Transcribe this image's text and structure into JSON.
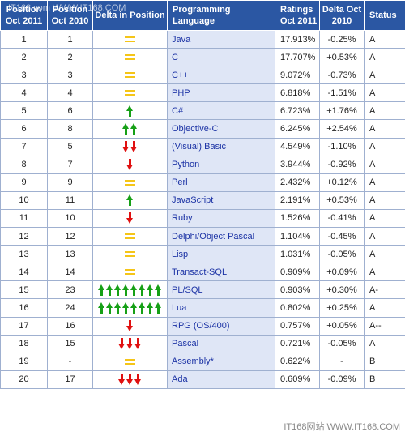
{
  "watermark_top": "IT168.com  WWW.IT168.COM",
  "watermark_bottom": "IT168网站 WWW.IT168.COM",
  "headers": {
    "position_now": "Position Oct 2011",
    "position_prev": "Position Oct 2010",
    "delta": "Delta in Position",
    "language": "Programming Language",
    "ratings": "Ratings Oct 2011",
    "delta_ratings": "Delta Oct 2010",
    "status": "Status"
  },
  "rows": [
    {
      "pos": "1",
      "prev": "1",
      "trend": "equal",
      "count": 1,
      "lang": "Java",
      "rating": "17.913%",
      "change": "-0.25%",
      "status": "A"
    },
    {
      "pos": "2",
      "prev": "2",
      "trend": "equal",
      "count": 1,
      "lang": "C",
      "rating": "17.707%",
      "change": "+0.53%",
      "status": "A"
    },
    {
      "pos": "3",
      "prev": "3",
      "trend": "equal",
      "count": 1,
      "lang": "C++",
      "rating": "9.072%",
      "change": "-0.73%",
      "status": "A"
    },
    {
      "pos": "4",
      "prev": "4",
      "trend": "equal",
      "count": 1,
      "lang": "PHP",
      "rating": "6.818%",
      "change": "-1.51%",
      "status": "A"
    },
    {
      "pos": "5",
      "prev": "6",
      "trend": "up",
      "count": 1,
      "lang": "C#",
      "rating": "6.723%",
      "change": "+1.76%",
      "status": "A"
    },
    {
      "pos": "6",
      "prev": "8",
      "trend": "up",
      "count": 2,
      "lang": "Objective-C",
      "rating": "6.245%",
      "change": "+2.54%",
      "status": "A"
    },
    {
      "pos": "7",
      "prev": "5",
      "trend": "down",
      "count": 2,
      "lang": "(Visual) Basic",
      "rating": "4.549%",
      "change": "-1.10%",
      "status": "A"
    },
    {
      "pos": "8",
      "prev": "7",
      "trend": "down",
      "count": 1,
      "lang": "Python",
      "rating": "3.944%",
      "change": "-0.92%",
      "status": "A"
    },
    {
      "pos": "9",
      "prev": "9",
      "trend": "equal",
      "count": 1,
      "lang": "Perl",
      "rating": "2.432%",
      "change": "+0.12%",
      "status": "A"
    },
    {
      "pos": "10",
      "prev": "11",
      "trend": "up",
      "count": 1,
      "lang": "JavaScript",
      "rating": "2.191%",
      "change": "+0.53%",
      "status": "A"
    },
    {
      "pos": "11",
      "prev": "10",
      "trend": "down",
      "count": 1,
      "lang": "Ruby",
      "rating": "1.526%",
      "change": "-0.41%",
      "status": "A"
    },
    {
      "pos": "12",
      "prev": "12",
      "trend": "equal",
      "count": 1,
      "lang": "Delphi/Object Pascal",
      "rating": "1.104%",
      "change": "-0.45%",
      "status": "A"
    },
    {
      "pos": "13",
      "prev": "13",
      "trend": "equal",
      "count": 1,
      "lang": "Lisp",
      "rating": "1.031%",
      "change": "-0.05%",
      "status": "A"
    },
    {
      "pos": "14",
      "prev": "14",
      "trend": "equal",
      "count": 1,
      "lang": "Transact-SQL",
      "rating": "0.909%",
      "change": "+0.09%",
      "status": "A"
    },
    {
      "pos": "15",
      "prev": "23",
      "trend": "up",
      "count": 8,
      "lang": "PL/SQL",
      "rating": "0.903%",
      "change": "+0.30%",
      "status": "A-"
    },
    {
      "pos": "16",
      "prev": "24",
      "trend": "up",
      "count": 8,
      "lang": "Lua",
      "rating": "0.802%",
      "change": "+0.25%",
      "status": "A"
    },
    {
      "pos": "17",
      "prev": "16",
      "trend": "down",
      "count": 1,
      "lang": "RPG (OS/400)",
      "rating": "0.757%",
      "change": "+0.05%",
      "status": "A--"
    },
    {
      "pos": "18",
      "prev": "15",
      "trend": "down",
      "count": 3,
      "lang": "Pascal",
      "rating": "0.721%",
      "change": "-0.05%",
      "status": "A"
    },
    {
      "pos": "19",
      "prev": "-",
      "trend": "equal",
      "count": 1,
      "lang": "Assembly*",
      "rating": "0.622%",
      "change": "-",
      "status": "B"
    },
    {
      "pos": "20",
      "prev": "17",
      "trend": "down",
      "count": 3,
      "lang": "Ada",
      "rating": "0.609%",
      "change": "-0.09%",
      "status": "B"
    }
  ]
}
